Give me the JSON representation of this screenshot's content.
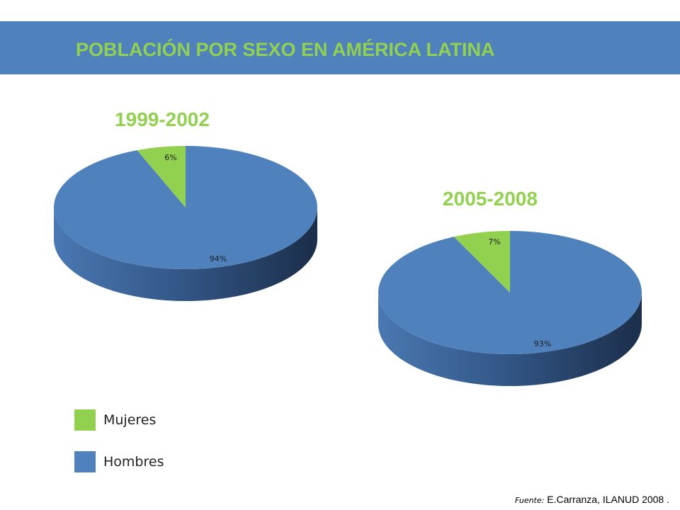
{
  "slide": {
    "title": "POBLACIÓN POR SEXO EN AMÉRICA LATINA",
    "source_label": "Fuente:",
    "source_text": "E.Carranza, ILANUD 2008 ."
  },
  "colors": {
    "accent_green": "#92d050",
    "banner_blue": "#4f81bd",
    "hombres": "#4f81bd",
    "mujeres": "#92d050"
  },
  "legend": [
    {
      "label": "Mujeres",
      "color": "#92d050"
    },
    {
      "label": "Hombres",
      "color": "#4f81bd"
    }
  ],
  "chart_data": [
    {
      "type": "pie",
      "title": "1999-2002",
      "categories": [
        "Mujeres",
        "Hombres"
      ],
      "values": [
        6,
        94
      ],
      "labels": [
        "6%",
        "94%"
      ]
    },
    {
      "type": "pie",
      "title": "2005-2008",
      "categories": [
        "Mujeres",
        "Hombres"
      ],
      "values": [
        7,
        93
      ],
      "labels": [
        "7%",
        "93%"
      ]
    }
  ]
}
